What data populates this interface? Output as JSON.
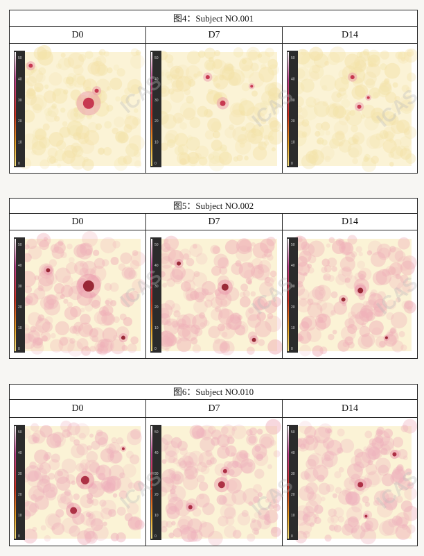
{
  "figures": [
    {
      "title": "图4：Subject NO.001",
      "columns": [
        "D0",
        "D7",
        "D14"
      ],
      "scale_ticks": [
        "50",
        "40",
        "30",
        "20",
        "10",
        "0"
      ],
      "tint": "#f3e2a8",
      "spot": "#c02040"
    },
    {
      "title": "图5：Subject NO.002",
      "columns": [
        "D0",
        "D7",
        "D14"
      ],
      "scale_ticks": [
        "50",
        "40",
        "30",
        "20",
        "10",
        "0"
      ],
      "tint": "#efb0b8",
      "spot": "#8a1020"
    },
    {
      "title": "图6：Subject NO.010",
      "columns": [
        "D0",
        "D7",
        "D14"
      ],
      "scale_ticks": [
        "50",
        "40",
        "30",
        "20",
        "10",
        "0"
      ],
      "tint": "#eeb0bc",
      "spot": "#a01830"
    }
  ],
  "watermark_text": "ICAS"
}
